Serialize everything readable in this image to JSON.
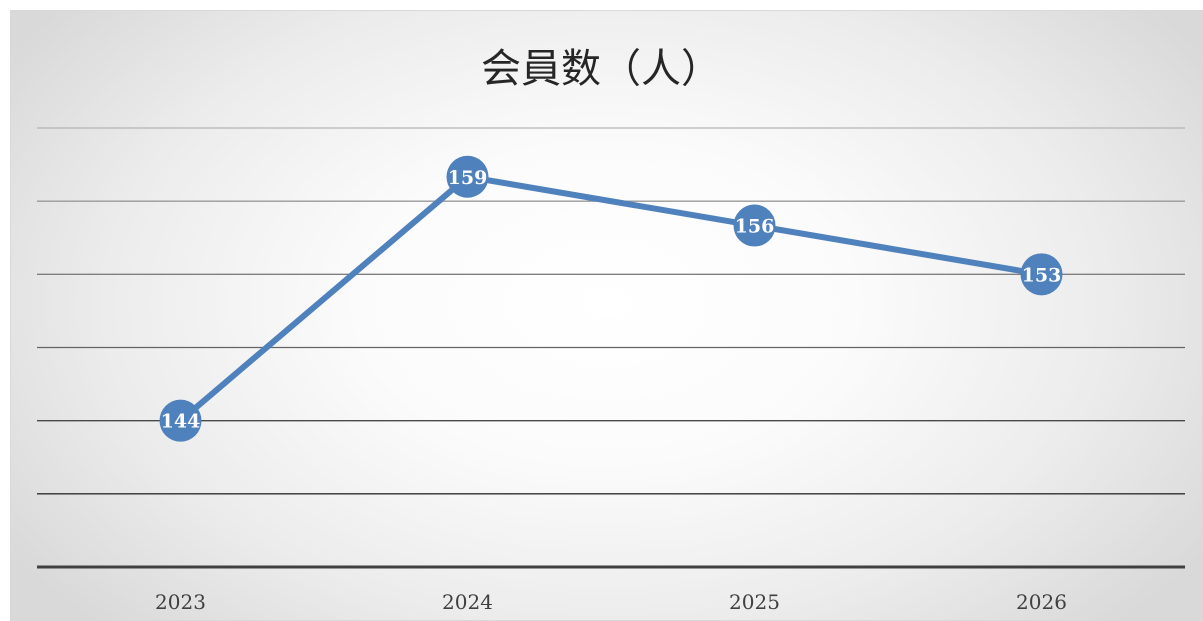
{
  "chart_data": {
    "type": "line",
    "title": "会員数（人）",
    "categories": [
      "2023",
      "2024",
      "2025",
      "2026"
    ],
    "series": [
      {
        "values": [
          144,
          159,
          156,
          153
        ]
      }
    ],
    "ylim": [
      135,
      162
    ],
    "ystep": 4.5,
    "grid": true,
    "xlabel": "",
    "ylabel": "",
    "colors": {
      "line": "#4f81bd",
      "marker": "#4f81bd",
      "label_text": "#ffffff"
    }
  }
}
